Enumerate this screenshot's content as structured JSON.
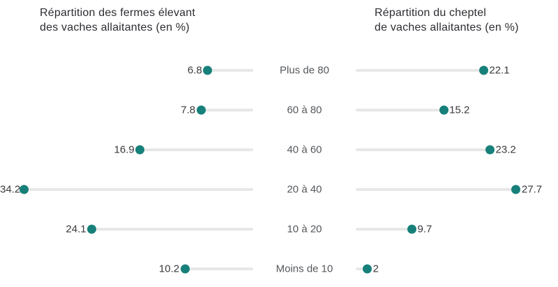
{
  "titles": {
    "left_line1": "Répartition des fermes élevant",
    "left_line2": "des vaches allaitantes (en %)",
    "right_line1": "Répartition du cheptel",
    "right_line2": "de vaches allaitantes (en %)"
  },
  "chart_data": {
    "type": "bar",
    "variant": "diverging-lollipop (dumbbell, mirrored from center category axis)",
    "categories": [
      "Plus de 80",
      "60 à 80",
      "40 à 60",
      "20 à 40",
      "10 à 20",
      "Moins de 10"
    ],
    "series": [
      {
        "name": "Répartition des fermes élevant des vaches allaitantes (en %)",
        "side": "left",
        "values": [
          6.8,
          7.8,
          16.9,
          34.2,
          24.1,
          10.2
        ]
      },
      {
        "name": "Répartition du cheptel de vaches allaitantes (en %)",
        "side": "right",
        "values": [
          22.1,
          15.2,
          23.2,
          27.7,
          9.7,
          2
        ]
      }
    ],
    "value_labels": {
      "left": [
        "6.8",
        "7.8",
        "16.9",
        "34.2",
        "24.1",
        "10.2"
      ],
      "right": [
        "22.1",
        "15.2",
        "23.2",
        "27.7",
        "9.7",
        "2"
      ]
    },
    "xlim_left": [
      0,
      35
    ],
    "xlim_right": [
      0,
      35
    ],
    "grid": false,
    "legend_position": "top (as two column titles)",
    "colors": {
      "dot": "#17807a",
      "track": "#e7e7e7",
      "title_text": "#2d2d32",
      "value_text": "#3a3a3e",
      "category_text": "#55585c"
    }
  }
}
